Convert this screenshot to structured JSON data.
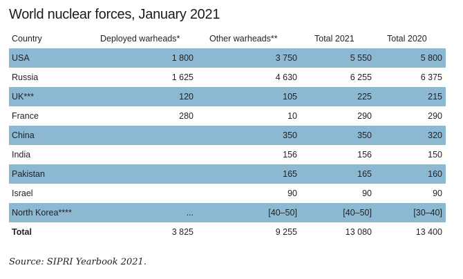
{
  "title": "World nuclear forces, January 2021",
  "headers": [
    "Country",
    "Deployed warheads*",
    "Other warheads**",
    "Total 2021",
    "Total 2020"
  ],
  "rows": [
    [
      "USA",
      "1 800",
      "3 750",
      "5 550",
      "5 800"
    ],
    [
      "Russia",
      "1 625",
      "4 630",
      "6 255",
      "6 375"
    ],
    [
      "UK***",
      "120",
      "105",
      "225",
      "215"
    ],
    [
      "France",
      "280",
      "10",
      "290",
      "290"
    ],
    [
      "China",
      "",
      "350",
      "350",
      "320"
    ],
    [
      "India",
      "",
      "156",
      "156",
      "150"
    ],
    [
      "Pakistan",
      "",
      "165",
      "165",
      "160"
    ],
    [
      "Israel",
      "",
      "90",
      "90",
      "90"
    ],
    [
      "North Korea****",
      "...",
      "[40–50]",
      "[40–50]",
      "[30–40]"
    ]
  ],
  "total": [
    "Total",
    "3 825",
    "9 255",
    "13 080",
    "13 400"
  ],
  "source": "Source: SIPRI Yearbook 2021.",
  "colors": {
    "row_highlight": "#8cb8d2"
  }
}
